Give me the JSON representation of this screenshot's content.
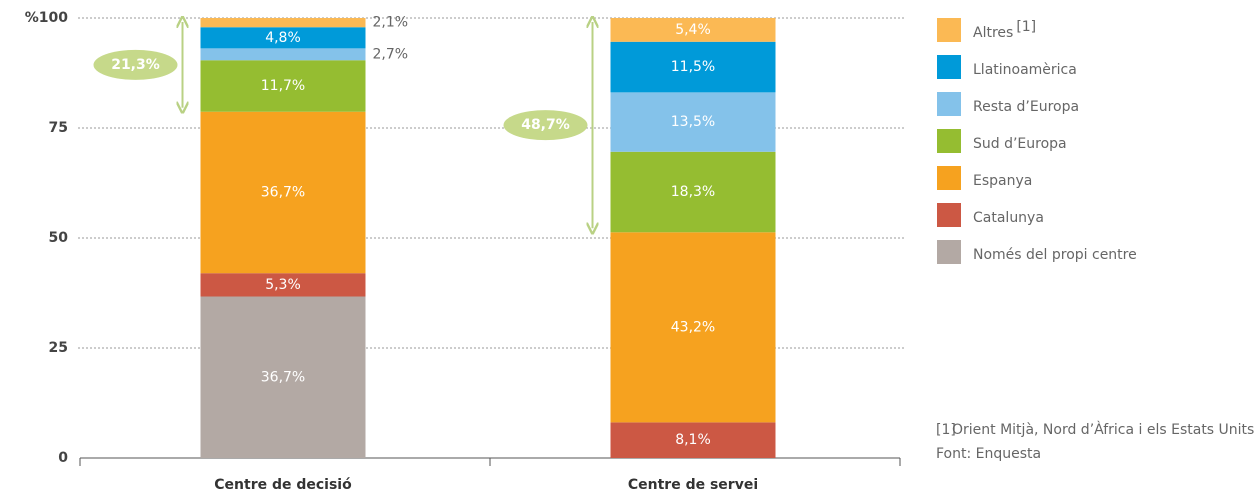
{
  "chart_data": {
    "type": "stacked_bar",
    "categories": [
      "Centre de decisió",
      "Centre de servei"
    ],
    "ylim": [
      0,
      100
    ],
    "yticks": [
      0,
      25,
      50,
      75,
      {
        "value": 100,
        "label": "%100"
      }
    ],
    "grid": true,
    "legend": "right",
    "series": [
      {
        "name": "Només del propi centre",
        "color": "#b3a9a4",
        "values": [
          36.7,
          null
        ],
        "value_labels": [
          "36,7%",
          null
        ]
      },
      {
        "name": "Catalunya",
        "color": "#cc5844",
        "values": [
          5.3,
          8.1
        ],
        "value_labels": [
          "5,3%",
          "8,1%"
        ]
      },
      {
        "name": "Espanya",
        "color": "#f6a21f",
        "values": [
          36.7,
          43.2
        ],
        "value_labels": [
          "36,7%",
          "43,2%"
        ]
      },
      {
        "name": "Sud d’Europa",
        "color": "#95bd31",
        "values": [
          11.7,
          18.3
        ],
        "value_labels": [
          "11,7%",
          "18,3%"
        ]
      },
      {
        "name": "Resta d’Europa",
        "color": "#84c2ea",
        "values": [
          2.7,
          13.5
        ],
        "value_labels": [
          "2,7%",
          "13,5%"
        ]
      },
      {
        "name": "Llatinoamèrica",
        "color": "#009ad9",
        "values": [
          4.8,
          11.5
        ],
        "value_labels": [
          "4,8%",
          "11,5%"
        ]
      },
      {
        "name": "Altres",
        "note": "[1]",
        "color": "#fbb954",
        "values": [
          2.1,
          5.4
        ],
        "value_labels": [
          "2,1%",
          "5,4%"
        ]
      }
    ],
    "annotations": [
      {
        "category": 0,
        "span": [
          78.7,
          100
        ],
        "value": 21.3,
        "label": "21,3%"
      },
      {
        "category": 1,
        "span": [
          51.3,
          100
        ],
        "value": 48.7,
        "label": "48,7%"
      }
    ],
    "notes": [
      {
        "marker": "[1]",
        "text": "Orient Mitjà, Nord d’Àfrica i els Estats Units"
      }
    ],
    "source": "Font: Enquesta"
  }
}
